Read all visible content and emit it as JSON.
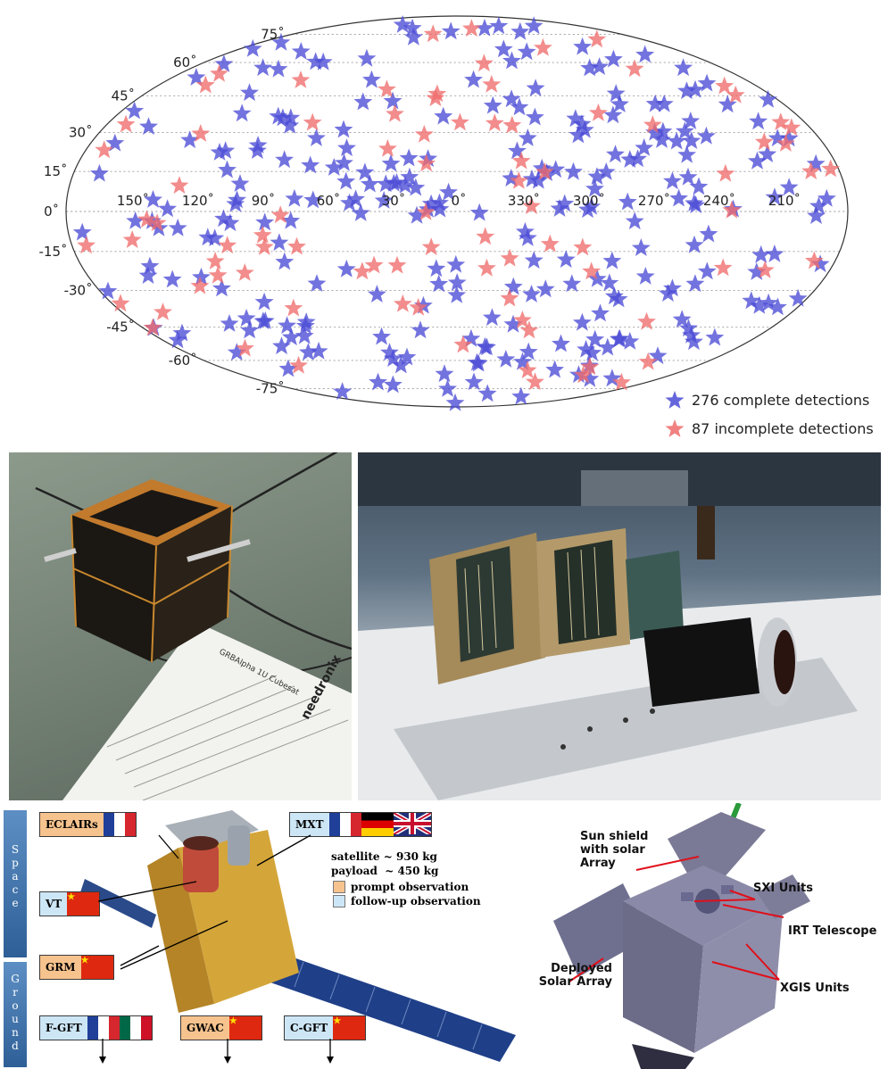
{
  "skymap": {
    "lat_labels": [
      {
        "text": "75˚",
        "lat": 75
      },
      {
        "text": "60˚",
        "lat": 60
      },
      {
        "text": "45˚",
        "lat": 45
      },
      {
        "text": "30˚",
        "lat": 30
      },
      {
        "text": "15˚",
        "lat": 15
      },
      {
        "text": "0˚",
        "lat": 0
      },
      {
        "text": "-15˚",
        "lat": -15
      },
      {
        "text": "-30˚",
        "lat": -30
      },
      {
        "text": "-45˚",
        "lat": -45
      },
      {
        "text": "-60˚",
        "lat": -60
      },
      {
        "text": "-75˚",
        "lat": -75
      }
    ],
    "lon_labels": [
      "150˚",
      "120˚",
      "90˚",
      "60˚",
      "30˚",
      "0˚",
      "330˚",
      "300˚",
      "270˚",
      "240˚",
      "210˚"
    ],
    "legend": [
      {
        "label": "276 complete detections",
        "color": "#4b4bd6"
      },
      {
        "label": "87 incomplete detections",
        "color": "#ef6b6b"
      }
    ],
    "complete_count": 276,
    "incomplete_count": 87
  },
  "cubesat_photo": {
    "document_text": [
      "GRBAlpha 1U Cubesat",
      "needronix"
    ]
  },
  "svom": {
    "segments": {
      "space": "Space",
      "ground": "Ground"
    },
    "instruments": [
      {
        "name": "ECLAIRs",
        "type": "prompt",
        "flags": [
          "france"
        ]
      },
      {
        "name": "MXT",
        "type": "follow-up",
        "flags": [
          "france",
          "germany",
          "uk"
        ]
      },
      {
        "name": "VT",
        "type": "follow-up",
        "flags": [
          "china"
        ]
      },
      {
        "name": "GRM",
        "type": "prompt",
        "flags": [
          "china"
        ]
      },
      {
        "name": "F-GFT",
        "type": "follow-up",
        "flags": [
          "france",
          "mexico"
        ]
      },
      {
        "name": "GWAC",
        "type": "prompt",
        "flags": [
          "china"
        ]
      },
      {
        "name": "C-GFT",
        "type": "follow-up",
        "flags": [
          "china"
        ]
      }
    ],
    "stats": [
      "satellite ~ 930 kg",
      "payload  ~ 450 kg"
    ],
    "key": [
      {
        "label": "prompt observation",
        "color": "#f6c38e"
      },
      {
        "label": "follow-up observation",
        "color": "#cde6f6"
      }
    ]
  },
  "theseus": {
    "labels": [
      "Sun shield with solar Array",
      "SXI Units",
      "IRT Telescope",
      "Deployed Solar Array",
      "XGIS Units"
    ]
  }
}
